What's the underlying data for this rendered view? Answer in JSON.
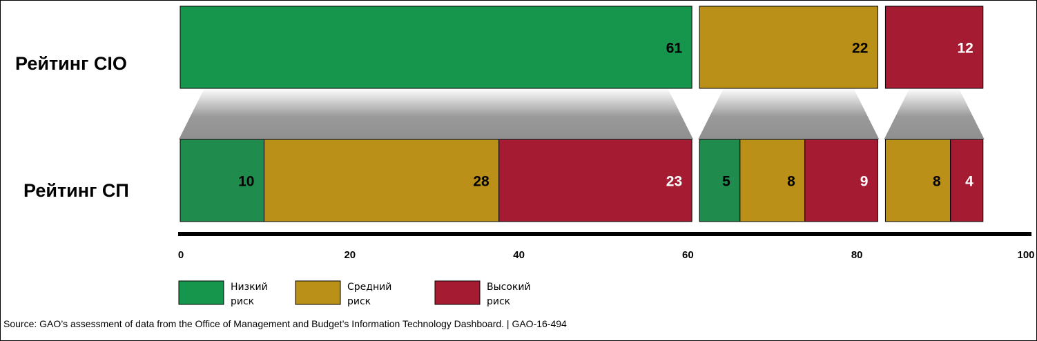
{
  "chart_data": {
    "type": "bar",
    "orientation": "horizontal",
    "stacked": true,
    "rows": [
      {
        "label": "Рейтинг CIO",
        "groups": [
          {
            "segments": [
              {
                "risk": "low",
                "value": 61
              }
            ]
          },
          {
            "segments": [
              {
                "risk": "medium",
                "value": 22
              }
            ]
          },
          {
            "segments": [
              {
                "risk": "high",
                "value": 12
              }
            ]
          }
        ]
      },
      {
        "label": "Рейтинг СП",
        "groups": [
          {
            "segments": [
              {
                "risk": "low",
                "value": 10
              },
              {
                "risk": "medium",
                "value": 28
              },
              {
                "risk": "high",
                "value": 23
              }
            ]
          },
          {
            "segments": [
              {
                "risk": "low",
                "value": 5
              },
              {
                "risk": "medium",
                "value": 8
              },
              {
                "risk": "high",
                "value": 9
              }
            ]
          },
          {
            "segments": [
              {
                "risk": "medium",
                "value": 8
              },
              {
                "risk": "high",
                "value": 4
              }
            ]
          }
        ]
      }
    ],
    "xlim": [
      0,
      100
    ],
    "xticks": [
      "0",
      "20",
      "40",
      "60",
      "80",
      "100"
    ],
    "legend": {
      "placement": "bottom-left",
      "entries": [
        {
          "risk": "low",
          "line1": "Низкий",
          "line2": "риск"
        },
        {
          "risk": "medium",
          "line1": "Средний",
          "line2": "риск"
        },
        {
          "risk": "high",
          "line1": "Высокий",
          "line2": "риск"
        }
      ]
    },
    "colors": {
      "low": "#16964c",
      "medium": "#bb9018",
      "high": "#a51b32",
      "low_detail": "#1f8c4e",
      "connector": "#9a9a9a",
      "axis": "#000000"
    },
    "label_colors": {
      "low": "#000000",
      "medium": "#000000",
      "high": "#ffffff"
    }
  },
  "source_note": "Source: GAO’s assessment of data from the Office of Management and Budget’s Information Technology Dashboard.  |  GAO-16-494"
}
